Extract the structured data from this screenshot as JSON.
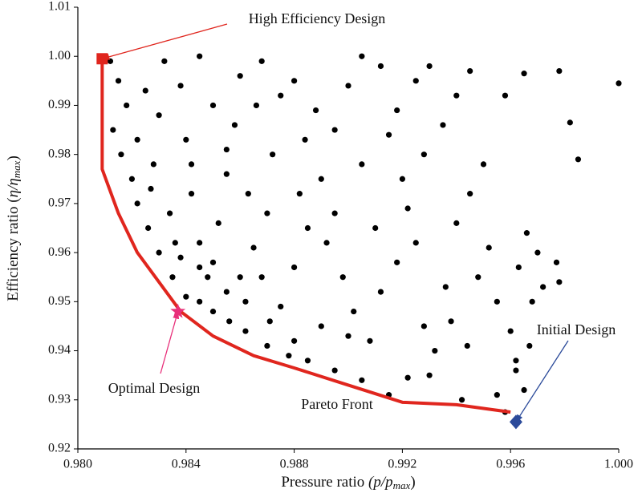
{
  "chart_data": {
    "type": "scatter",
    "xlabel": [
      "Pressure ratio ",
      "(p/p",
      "max",
      ")"
    ],
    "ylabel": [
      "Efficiency ratio (",
      "η/η",
      "max",
      ")"
    ],
    "xlim": [
      0.98,
      1.0
    ],
    "ylim": [
      0.92,
      1.01
    ],
    "xticks": [
      {
        "value": 0.98,
        "label": "0.980"
      },
      0.984,
      0.988,
      0.992,
      0.996,
      {
        "value": 1.0,
        "label": "1.000"
      }
    ],
    "yticks": [
      0.92,
      0.93,
      0.94,
      0.95,
      0.96,
      0.97,
      0.98,
      0.99,
      {
        "value": 1.0,
        "label": "1.00"
      },
      1.01
    ],
    "series": [
      {
        "color": "#000000",
        "x": [
          0.9812,
          0.9815,
          0.9818,
          0.9813,
          0.9816,
          0.982,
          0.9822,
          0.9826,
          0.983,
          0.9835,
          0.984,
          0.9845,
          0.985,
          0.9856,
          0.9862,
          0.987,
          0.9878,
          0.9885,
          0.9895,
          0.9905,
          0.9915,
          0.9922,
          0.993,
          0.9942,
          0.9955,
          0.9958,
          0.9965,
          0.9962,
          0.996,
          0.9968,
          0.9963,
          0.997,
          0.9966,
          0.9977,
          0.9978,
          0.9985,
          0.9982,
          0.9978,
          0.9965,
          1.0,
          0.9958,
          0.9945,
          0.994,
          0.9935,
          0.995,
          0.9945,
          0.994,
          0.9952,
          0.9948,
          0.9938,
          0.9932,
          0.9925,
          0.992,
          0.9918,
          0.9912,
          0.9905,
          0.99,
          0.9895,
          0.989,
          0.9885,
          0.988,
          0.9875,
          0.9868,
          0.987,
          0.9872,
          0.9875,
          0.9868,
          0.986,
          0.9858,
          0.9855,
          0.9852,
          0.985,
          0.9845,
          0.9842,
          0.984,
          0.9838,
          0.9845,
          0.9832,
          0.983,
          0.9828,
          0.9834,
          0.9836,
          0.9825,
          0.9822,
          0.9827,
          0.9848,
          0.9855,
          0.9862,
          0.9865,
          0.9863,
          0.9866,
          0.988,
          0.9884,
          0.9882,
          0.9892,
          0.9898,
          0.9902,
          0.9908,
          0.9912,
          0.991,
          0.9905,
          0.9915,
          0.9925,
          0.993,
          0.9928,
          0.9922,
          0.9918,
          0.99,
          0.989,
          0.988,
          0.9871,
          0.986,
          0.9845,
          0.9838,
          0.985,
          0.9855,
          0.9842,
          0.9895,
          0.9888,
          0.9936,
          0.9928,
          0.9944,
          0.9955,
          0.9972,
          0.9962,
          0.9967
        ],
        "y": [
          0.999,
          0.995,
          0.99,
          0.985,
          0.98,
          0.975,
          0.97,
          0.965,
          0.96,
          0.955,
          0.951,
          0.95,
          0.948,
          0.946,
          0.944,
          0.941,
          0.939,
          0.938,
          0.936,
          0.934,
          0.931,
          0.9345,
          0.935,
          0.93,
          0.931,
          0.9275,
          0.932,
          0.938,
          0.944,
          0.95,
          0.957,
          0.96,
          0.964,
          0.958,
          0.954,
          0.979,
          0.9865,
          0.997,
          0.9965,
          0.9945,
          0.992,
          0.997,
          0.992,
          0.986,
          0.978,
          0.972,
          0.966,
          0.961,
          0.955,
          0.946,
          0.94,
          0.962,
          0.975,
          0.989,
          0.998,
          1.0,
          0.994,
          0.985,
          0.975,
          0.965,
          0.957,
          0.949,
          0.955,
          0.968,
          0.98,
          0.992,
          0.999,
          0.996,
          0.986,
          0.976,
          0.966,
          0.958,
          0.962,
          0.972,
          0.983,
          0.994,
          1.0,
          0.999,
          0.988,
          0.978,
          0.968,
          0.962,
          0.993,
          0.983,
          0.973,
          0.955,
          0.952,
          0.95,
          0.961,
          0.972,
          0.99,
          0.995,
          0.983,
          0.972,
          0.962,
          0.955,
          0.948,
          0.942,
          0.952,
          0.965,
          0.978,
          0.984,
          0.995,
          0.998,
          0.98,
          0.969,
          0.958,
          0.943,
          0.945,
          0.942,
          0.946,
          0.955,
          0.957,
          0.959,
          0.99,
          0.981,
          0.978,
          0.968,
          0.989,
          0.953,
          0.945,
          0.941,
          0.95,
          0.953,
          0.936,
          0.941
        ]
      }
    ],
    "pareto": {
      "label": "Pareto Front",
      "color": "#e0261e",
      "x": [
        0.9809,
        0.9809,
        0.9815,
        0.9822,
        0.983,
        0.9838,
        0.985,
        0.9865,
        0.988,
        0.99,
        0.992,
        0.994,
        0.996
      ],
      "y": [
        0.9995,
        0.977,
        0.968,
        0.96,
        0.954,
        0.948,
        0.943,
        0.939,
        0.9365,
        0.933,
        0.9295,
        0.929,
        0.9275
      ]
    },
    "points": [
      {
        "label": "High Efficiency Design",
        "x": 0.9809,
        "y": 0.9995,
        "color": "#e0261e",
        "shape": "square"
      },
      {
        "label": "Optimal Design",
        "x": 0.9837,
        "y": 0.948,
        "color": "#e8307a",
        "shape": "star"
      },
      {
        "label": "Initial Design",
        "x": 0.9962,
        "y": 0.9255,
        "color": "#2b4a9a",
        "shape": "diamond"
      }
    ]
  }
}
